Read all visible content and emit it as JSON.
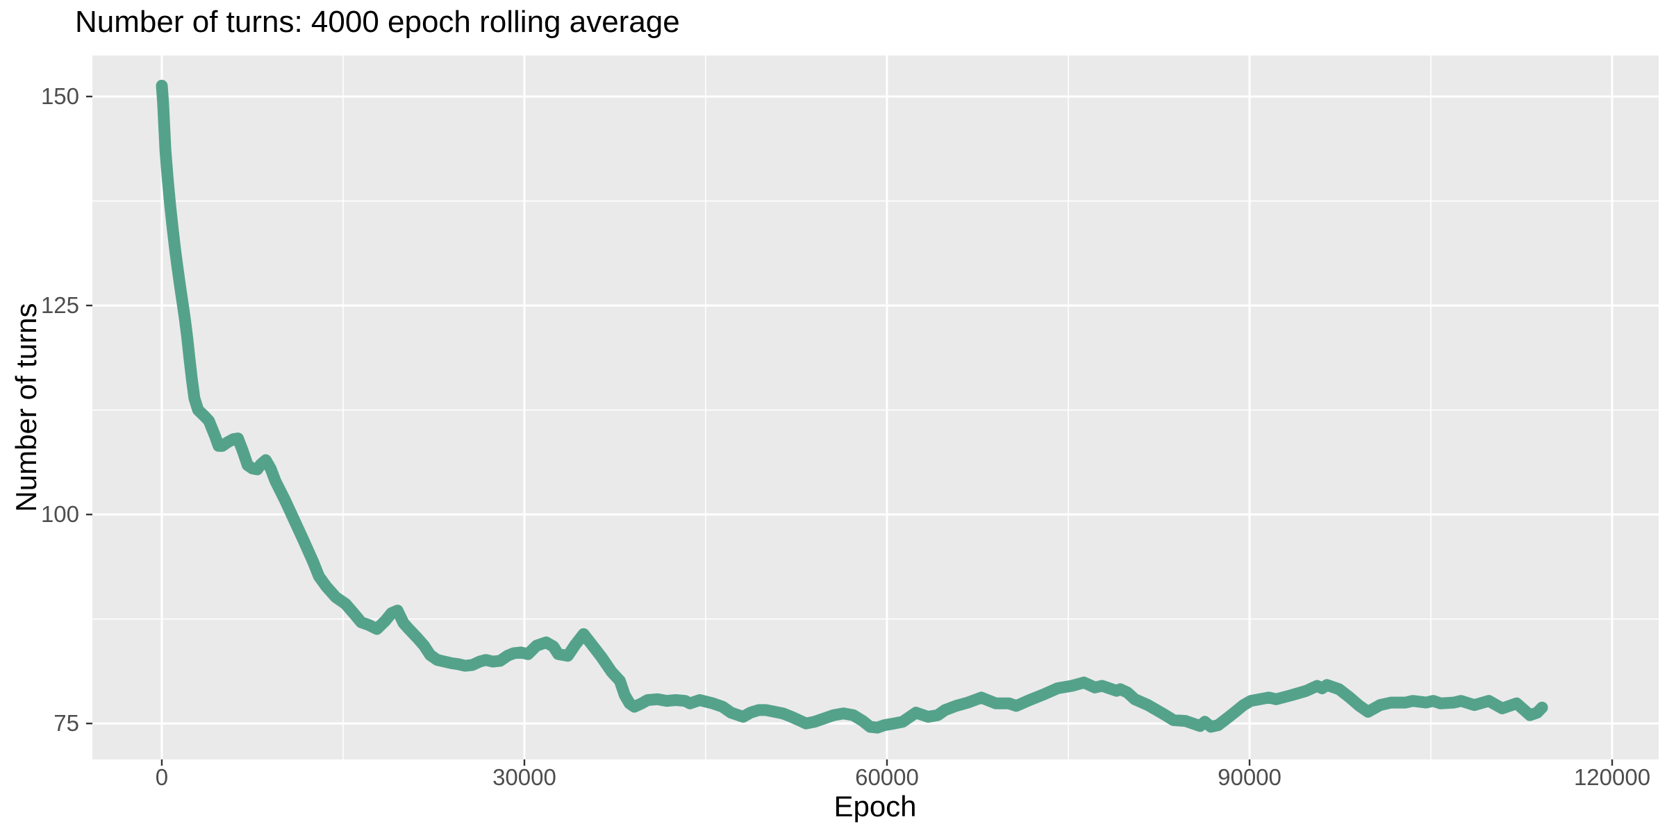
{
  "title": "Number of turns: 4000 epoch rolling average",
  "colors": {
    "line": "#55a28b",
    "panel_background": "#EAEAEA",
    "grid": "#FFFFFF",
    "tick_mark": "#333333",
    "tick_label": "#4D4D4D",
    "title_text": "#000000",
    "page_background": "#FFFFFF"
  },
  "chart_data": {
    "type": "line",
    "title": "Number of turns: 4000 epoch rolling average",
    "xlabel": "Epoch",
    "ylabel": "Number of turns",
    "x_ticks": [
      0,
      30000,
      60000,
      90000,
      120000
    ],
    "x_minor_ticks": [
      15000,
      45000,
      75000,
      105000
    ],
    "y_ticks": [
      75,
      100,
      125,
      150
    ],
    "y_minor_ticks": [
      87.5,
      112.5,
      137.5
    ],
    "xlim": [
      -5745,
      123850
    ],
    "ylim": [
      70.7,
      154.9
    ],
    "grid": true,
    "legend": false,
    "series": [
      {
        "name": "rolling-average",
        "color": "#55a28b",
        "points": [
          [
            0,
            151.3
          ],
          [
            100,
            149.4
          ],
          [
            300,
            143.5
          ],
          [
            500,
            139.9
          ],
          [
            700,
            136.9
          ],
          [
            900,
            134.2
          ],
          [
            1100,
            131.7
          ],
          [
            1300,
            129.5
          ],
          [
            1500,
            127.4
          ],
          [
            1700,
            125.5
          ],
          [
            1900,
            123.5
          ],
          [
            2100,
            121.2
          ],
          [
            2300,
            118.5
          ],
          [
            2500,
            116.0
          ],
          [
            2700,
            113.9
          ],
          [
            3000,
            112.5
          ],
          [
            3500,
            111.8
          ],
          [
            3900,
            111.2
          ],
          [
            4400,
            109.4
          ],
          [
            4700,
            108.2
          ],
          [
            5000,
            108.2
          ],
          [
            5400,
            108.6
          ],
          [
            5900,
            109.0
          ],
          [
            6300,
            109.1
          ],
          [
            6700,
            107.6
          ],
          [
            7100,
            105.9
          ],
          [
            7500,
            105.5
          ],
          [
            7900,
            105.4
          ],
          [
            8200,
            106.0
          ],
          [
            8600,
            106.5
          ],
          [
            9000,
            105.5
          ],
          [
            9400,
            104.0
          ],
          [
            10200,
            101.7
          ],
          [
            10900,
            99.5
          ],
          [
            11700,
            97.0
          ],
          [
            12500,
            94.4
          ],
          [
            13000,
            92.6
          ],
          [
            13600,
            91.4
          ],
          [
            14400,
            90.1
          ],
          [
            15200,
            89.3
          ],
          [
            15800,
            88.3
          ],
          [
            16500,
            87.1
          ],
          [
            17100,
            86.8
          ],
          [
            17800,
            86.3
          ],
          [
            18500,
            87.3
          ],
          [
            19000,
            88.2
          ],
          [
            19500,
            88.5
          ],
          [
            20000,
            87.0
          ],
          [
            20500,
            86.2
          ],
          [
            21100,
            85.3
          ],
          [
            21700,
            84.3
          ],
          [
            22200,
            83.2
          ],
          [
            22800,
            82.6
          ],
          [
            23400,
            82.4
          ],
          [
            24000,
            82.2
          ],
          [
            24500,
            82.1
          ],
          [
            25100,
            81.9
          ],
          [
            25700,
            82.0
          ],
          [
            26300,
            82.4
          ],
          [
            26800,
            82.6
          ],
          [
            27400,
            82.4
          ],
          [
            28000,
            82.5
          ],
          [
            28600,
            83.1
          ],
          [
            29100,
            83.4
          ],
          [
            29700,
            83.5
          ],
          [
            30300,
            83.3
          ],
          [
            31000,
            84.3
          ],
          [
            31800,
            84.7
          ],
          [
            32400,
            84.2
          ],
          [
            32800,
            83.3
          ],
          [
            33600,
            83.1
          ],
          [
            34200,
            84.4
          ],
          [
            34900,
            85.7
          ],
          [
            35600,
            84.4
          ],
          [
            36400,
            82.9
          ],
          [
            37200,
            81.2
          ],
          [
            37900,
            80.1
          ],
          [
            38300,
            78.4
          ],
          [
            38700,
            77.4
          ],
          [
            39100,
            77.0
          ],
          [
            39700,
            77.4
          ],
          [
            40200,
            77.8
          ],
          [
            41000,
            77.9
          ],
          [
            41800,
            77.7
          ],
          [
            42500,
            77.8
          ],
          [
            43300,
            77.7
          ],
          [
            43700,
            77.4
          ],
          [
            44500,
            77.8
          ],
          [
            45600,
            77.4
          ],
          [
            46400,
            77.0
          ],
          [
            47100,
            76.3
          ],
          [
            48100,
            75.8
          ],
          [
            48700,
            76.3
          ],
          [
            49400,
            76.6
          ],
          [
            50000,
            76.6
          ],
          [
            51400,
            76.2
          ],
          [
            52100,
            75.8
          ],
          [
            53300,
            75.0
          ],
          [
            54000,
            75.2
          ],
          [
            54800,
            75.6
          ],
          [
            55600,
            76.0
          ],
          [
            56400,
            76.2
          ],
          [
            57200,
            76.0
          ],
          [
            58000,
            75.3
          ],
          [
            58600,
            74.6
          ],
          [
            59200,
            74.5
          ],
          [
            59800,
            74.8
          ],
          [
            60600,
            75.0
          ],
          [
            61300,
            75.2
          ],
          [
            62400,
            76.3
          ],
          [
            63400,
            75.8
          ],
          [
            64200,
            76.0
          ],
          [
            64800,
            76.6
          ],
          [
            65700,
            77.1
          ],
          [
            66700,
            77.5
          ],
          [
            67800,
            78.1
          ],
          [
            69000,
            77.4
          ],
          [
            70100,
            77.4
          ],
          [
            70700,
            77.1
          ],
          [
            71800,
            77.8
          ],
          [
            73000,
            78.5
          ],
          [
            74100,
            79.2
          ],
          [
            75300,
            79.5
          ],
          [
            76300,
            79.9
          ],
          [
            77200,
            79.3
          ],
          [
            77800,
            79.5
          ],
          [
            79000,
            78.9
          ],
          [
            79300,
            79.1
          ],
          [
            79900,
            78.7
          ],
          [
            80500,
            77.9
          ],
          [
            81600,
            77.2
          ],
          [
            82800,
            76.2
          ],
          [
            83700,
            75.4
          ],
          [
            84700,
            75.3
          ],
          [
            85900,
            74.7
          ],
          [
            86300,
            75.2
          ],
          [
            86800,
            74.6
          ],
          [
            87400,
            74.8
          ],
          [
            88300,
            75.8
          ],
          [
            88900,
            76.5
          ],
          [
            89500,
            77.2
          ],
          [
            90100,
            77.7
          ],
          [
            91600,
            78.1
          ],
          [
            92200,
            77.9
          ],
          [
            93500,
            78.4
          ],
          [
            94700,
            78.9
          ],
          [
            95600,
            79.5
          ],
          [
            96000,
            79.2
          ],
          [
            96400,
            79.6
          ],
          [
            97400,
            79.1
          ],
          [
            98300,
            78.1
          ],
          [
            99100,
            77.1
          ],
          [
            99800,
            76.4
          ],
          [
            100800,
            77.2
          ],
          [
            101700,
            77.5
          ],
          [
            102900,
            77.5
          ],
          [
            103500,
            77.7
          ],
          [
            104600,
            77.5
          ],
          [
            105200,
            77.7
          ],
          [
            105800,
            77.4
          ],
          [
            106900,
            77.5
          ],
          [
            107500,
            77.7
          ],
          [
            108600,
            77.2
          ],
          [
            109800,
            77.7
          ],
          [
            110900,
            76.8
          ],
          [
            112100,
            77.4
          ],
          [
            113200,
            76.0
          ],
          [
            113800,
            76.3
          ],
          [
            114200,
            76.9
          ]
        ]
      }
    ]
  }
}
